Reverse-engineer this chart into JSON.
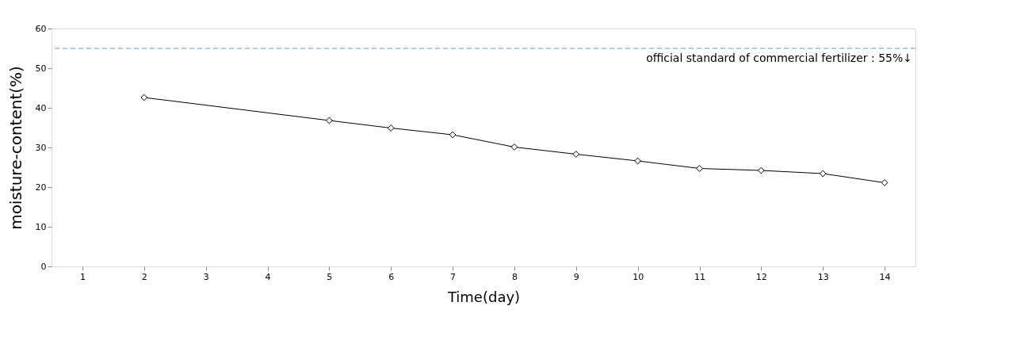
{
  "chart_data": {
    "type": "line",
    "xlabel": "Time(day)",
    "ylabel": "moisture-content(%)",
    "categories": [
      "1",
      "2",
      "3",
      "4",
      "5",
      "6",
      "7",
      "8",
      "9",
      "10",
      "11",
      "12",
      "13",
      "14"
    ],
    "series": [
      {
        "color": "#000000",
        "values": [
          null,
          42.6,
          null,
          null,
          36.8,
          34.9,
          33.2,
          30.1,
          28.3,
          26.6,
          24.7,
          24.2,
          23.4,
          21.1
        ]
      }
    ],
    "ylim": [
      0,
      60
    ],
    "yticks": [
      0,
      10,
      20,
      30,
      40,
      50,
      60
    ],
    "ref_lines": [
      {
        "axis": "y",
        "value": 55,
        "label": "official standard of commercial fertilizer : 55%↓",
        "color": "#5b9bd5",
        "line_style": "dashed"
      }
    ],
    "marker": "diamond",
    "line_style": "solid",
    "grid": false
  }
}
